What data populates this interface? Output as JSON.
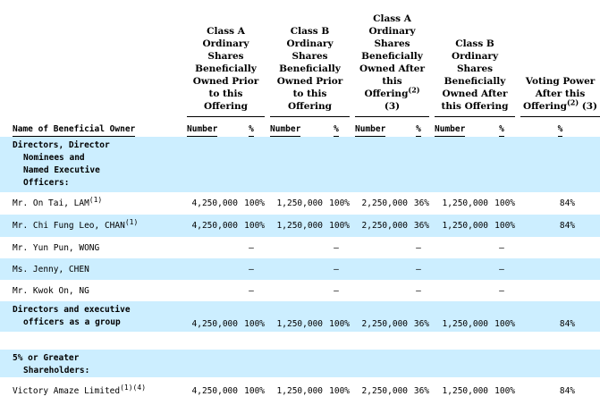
{
  "headers": {
    "name": "Name of Beneficial Owner",
    "col1": "Class A Ordinary Shares Beneficially Owned Prior to this Offering",
    "col2": "Class B Ordinary Shares Beneficially Owned Prior to this Offering",
    "col3": "Class A Ordinary Shares Beneficially Owned After this Offering",
    "col3_note": "(2)",
    "col3_tail": "(3)",
    "col4": "Class B Ordinary Shares Beneficially Owned After this Offering",
    "col5": "Voting Power After this Offering",
    "col5_note": "(2)",
    "col5_tail": "(3)",
    "number": "Number",
    "percent": "%"
  },
  "section1": {
    "title_line1": "Directors, Director",
    "title_line2": "Nominees and",
    "title_line3": "Named Executive",
    "title_line4": "Officers:"
  },
  "rows": [
    {
      "name": "Mr.  On Tai, LAM",
      "note": "(1)",
      "a_num": "4,250,000",
      "a_pct": "100%",
      "b_num": "1,250,000",
      "b_pct": "100%",
      "a2_num": "2,250,000",
      "a2_pct": "36%",
      "b2_num": "1,250,000",
      "b2_pct": "100%",
      "vp": "84%"
    },
    {
      "name": "Mr.  Chi Fung Leo, CHAN",
      "note": "(1)",
      "a_num": "4,250,000",
      "a_pct": "100%",
      "b_num": "1,250,000",
      "b_pct": "100%",
      "a2_num": "2,250,000",
      "a2_pct": "36%",
      "b2_num": "1,250,000",
      "b2_pct": "100%",
      "vp": "84%"
    },
    {
      "name": "Mr.  Yun Pun, WONG",
      "dash": "—"
    },
    {
      "name": "Ms.  Jenny, CHEN",
      "dash": "—"
    },
    {
      "name": "Mr.  Kwok On, NG",
      "dash": "—"
    }
  ],
  "group": {
    "line1": "Directors and executive",
    "line2": "officers as a group",
    "a_num": "4,250,000",
    "a_pct": "100%",
    "b_num": "1,250,000",
    "b_pct": "100%",
    "a2_num": "2,250,000",
    "a2_pct": "36%",
    "b2_num": "1,250,000",
    "b2_pct": "100%",
    "vp": "84%"
  },
  "section2": {
    "title_line1": "5% or Greater",
    "title_line2": "Shareholders:"
  },
  "holder": {
    "name": "Victory Amaze Limited",
    "note": "(1)(4)",
    "a_num": "4,250,000",
    "a_pct": "100%",
    "b_num": "1,250,000",
    "b_pct": "100%",
    "a2_num": "2,250,000",
    "a2_pct": "36%",
    "b2_num": "1,250,000",
    "b2_pct": "100%",
    "vp": "84%"
  },
  "colors": {
    "shade": "#cceeff"
  }
}
